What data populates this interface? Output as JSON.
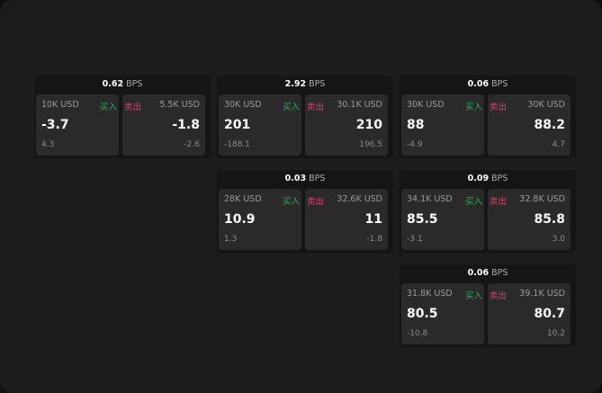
{
  "unit": "BPS",
  "buy_label": "买入",
  "sell_label": "卖出",
  "colors": {
    "buy": "#2eaa5c",
    "sell": "#e0416b",
    "background": "#1c1c1c",
    "panel": "#2a2a2a"
  },
  "cards": [
    {
      "spread": "0.62",
      "buy": {
        "qty": "10K USD",
        "price": "-3.7",
        "change": "4.3"
      },
      "sell": {
        "qty": "5.5K USD",
        "price": "-1.8",
        "change": "-2.6"
      }
    },
    {
      "spread": "2.92",
      "buy": {
        "qty": "30K USD",
        "price": "201",
        "change": "-188.1"
      },
      "sell": {
        "qty": "30.1K USD",
        "price": "210",
        "change": "196.5"
      }
    },
    {
      "spread": "0.06",
      "buy": {
        "qty": "30K USD",
        "price": "88",
        "change": "-4.9"
      },
      "sell": {
        "qty": "30K USD",
        "price": "88.2",
        "change": "4.7"
      }
    },
    {
      "spread": "0.03",
      "buy": {
        "qty": "28K USD",
        "price": "10.9",
        "change": "1.3"
      },
      "sell": {
        "qty": "32.6K USD",
        "price": "11",
        "change": "-1.8"
      }
    },
    {
      "spread": "0.09",
      "buy": {
        "qty": "34.1K USD",
        "price": "85.5",
        "change": "-3.1"
      },
      "sell": {
        "qty": "32.8K USD",
        "price": "85.8",
        "change": "3.0"
      }
    },
    {
      "spread": "0.06",
      "buy": {
        "qty": "31.8K USD",
        "price": "80.5",
        "change": "-10.8"
      },
      "sell": {
        "qty": "39.1K USD",
        "price": "80.7",
        "change": "10.2"
      }
    }
  ]
}
